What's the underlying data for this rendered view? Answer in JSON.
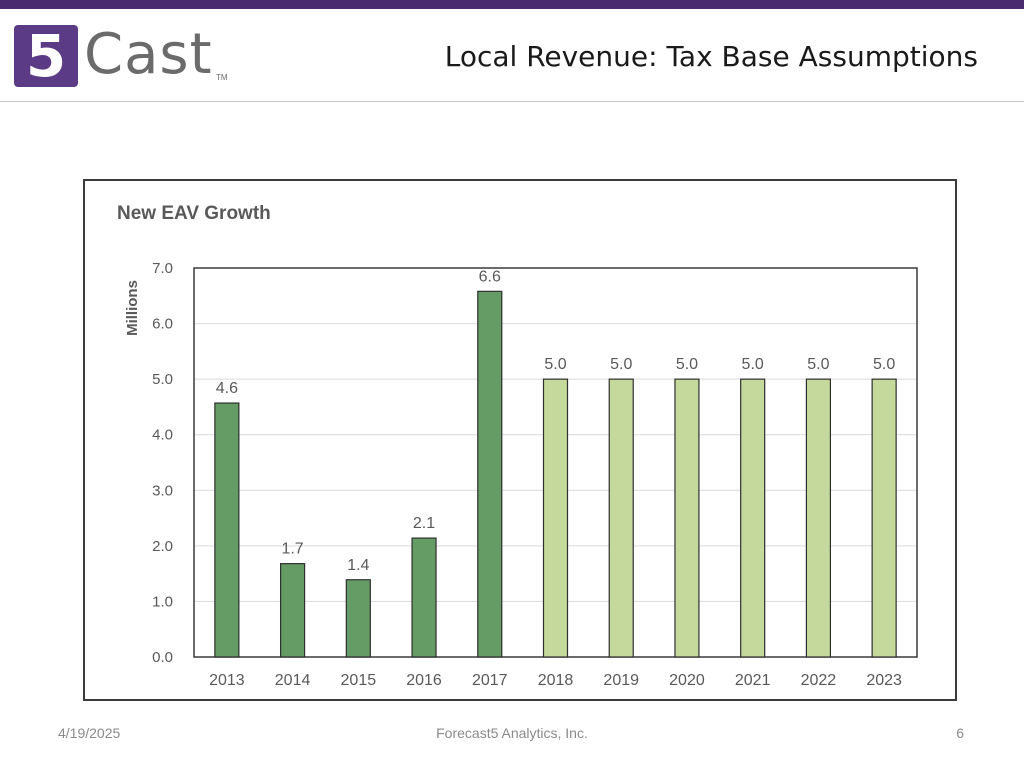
{
  "slide": {
    "title": "Local Revenue: Tax Base Assumptions",
    "logo_text": "Cast",
    "logo_mark": "5",
    "logo_tm": "TM"
  },
  "footer": {
    "date": "4/19/2025",
    "company": "Forecast5 Analytics, Inc.",
    "page_number": "6"
  },
  "colors": {
    "top_bar": "#4b2b6f",
    "actual_bar": "#659b64",
    "projected_bar": "#c6d99c",
    "bar_stroke": "#2f2f2f",
    "grid": "#d9d9d9"
  },
  "chart_data": {
    "type": "bar",
    "title": "New EAV Growth",
    "xlabel": "",
    "ylabel": "Millions",
    "ylim": [
      0,
      7
    ],
    "yticks": [
      "0.0",
      "1.0",
      "2.0",
      "3.0",
      "4.0",
      "5.0",
      "6.0",
      "7.0"
    ],
    "grid": true,
    "categories": [
      "2013",
      "2014",
      "2015",
      "2016",
      "2017",
      "2018",
      "2019",
      "2020",
      "2021",
      "2022",
      "2023"
    ],
    "values": [
      4.57,
      1.68,
      1.39,
      2.14,
      6.58,
      5.0,
      5.0,
      5.0,
      5.0,
      5.0,
      5.0
    ],
    "data_labels": [
      "4.6",
      "1.7",
      "1.4",
      "2.1",
      "6.6",
      "5.0",
      "5.0",
      "5.0",
      "5.0",
      "5.0",
      "5.0"
    ],
    "projected": [
      false,
      false,
      false,
      false,
      false,
      true,
      true,
      true,
      true,
      true,
      true
    ]
  }
}
